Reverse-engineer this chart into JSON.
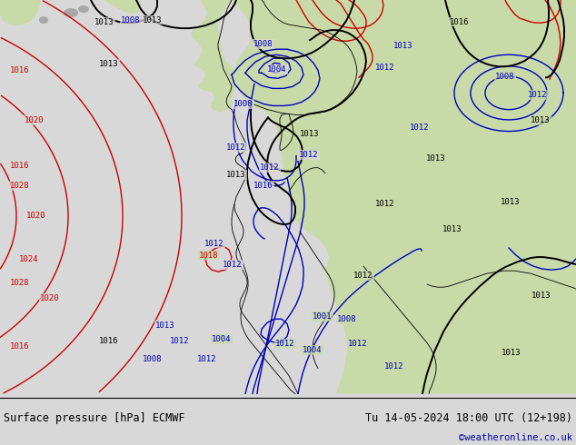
{
  "title_left": "Surface pressure [hPa] ECMWF",
  "title_right": "Tu 14-05-2024 18:00 UTC (12+198)",
  "credit": "©weatheronline.co.uk",
  "ocean_color": "#d8d8d8",
  "land_green": "#c8daa8",
  "land_gray": "#a8a8a8",
  "red": "#cc0000",
  "blue": "#0000bb",
  "black": "#000000",
  "footer_bg": "#d0d0d0",
  "credit_color": "#0000aa",
  "lw_main": 1.4,
  "lw_iso": 1.0,
  "lfs": 6.5,
  "footer_fs": 8.5,
  "credit_fs": 7.5,
  "figsize": [
    6.34,
    4.9
  ],
  "dpi": 100
}
